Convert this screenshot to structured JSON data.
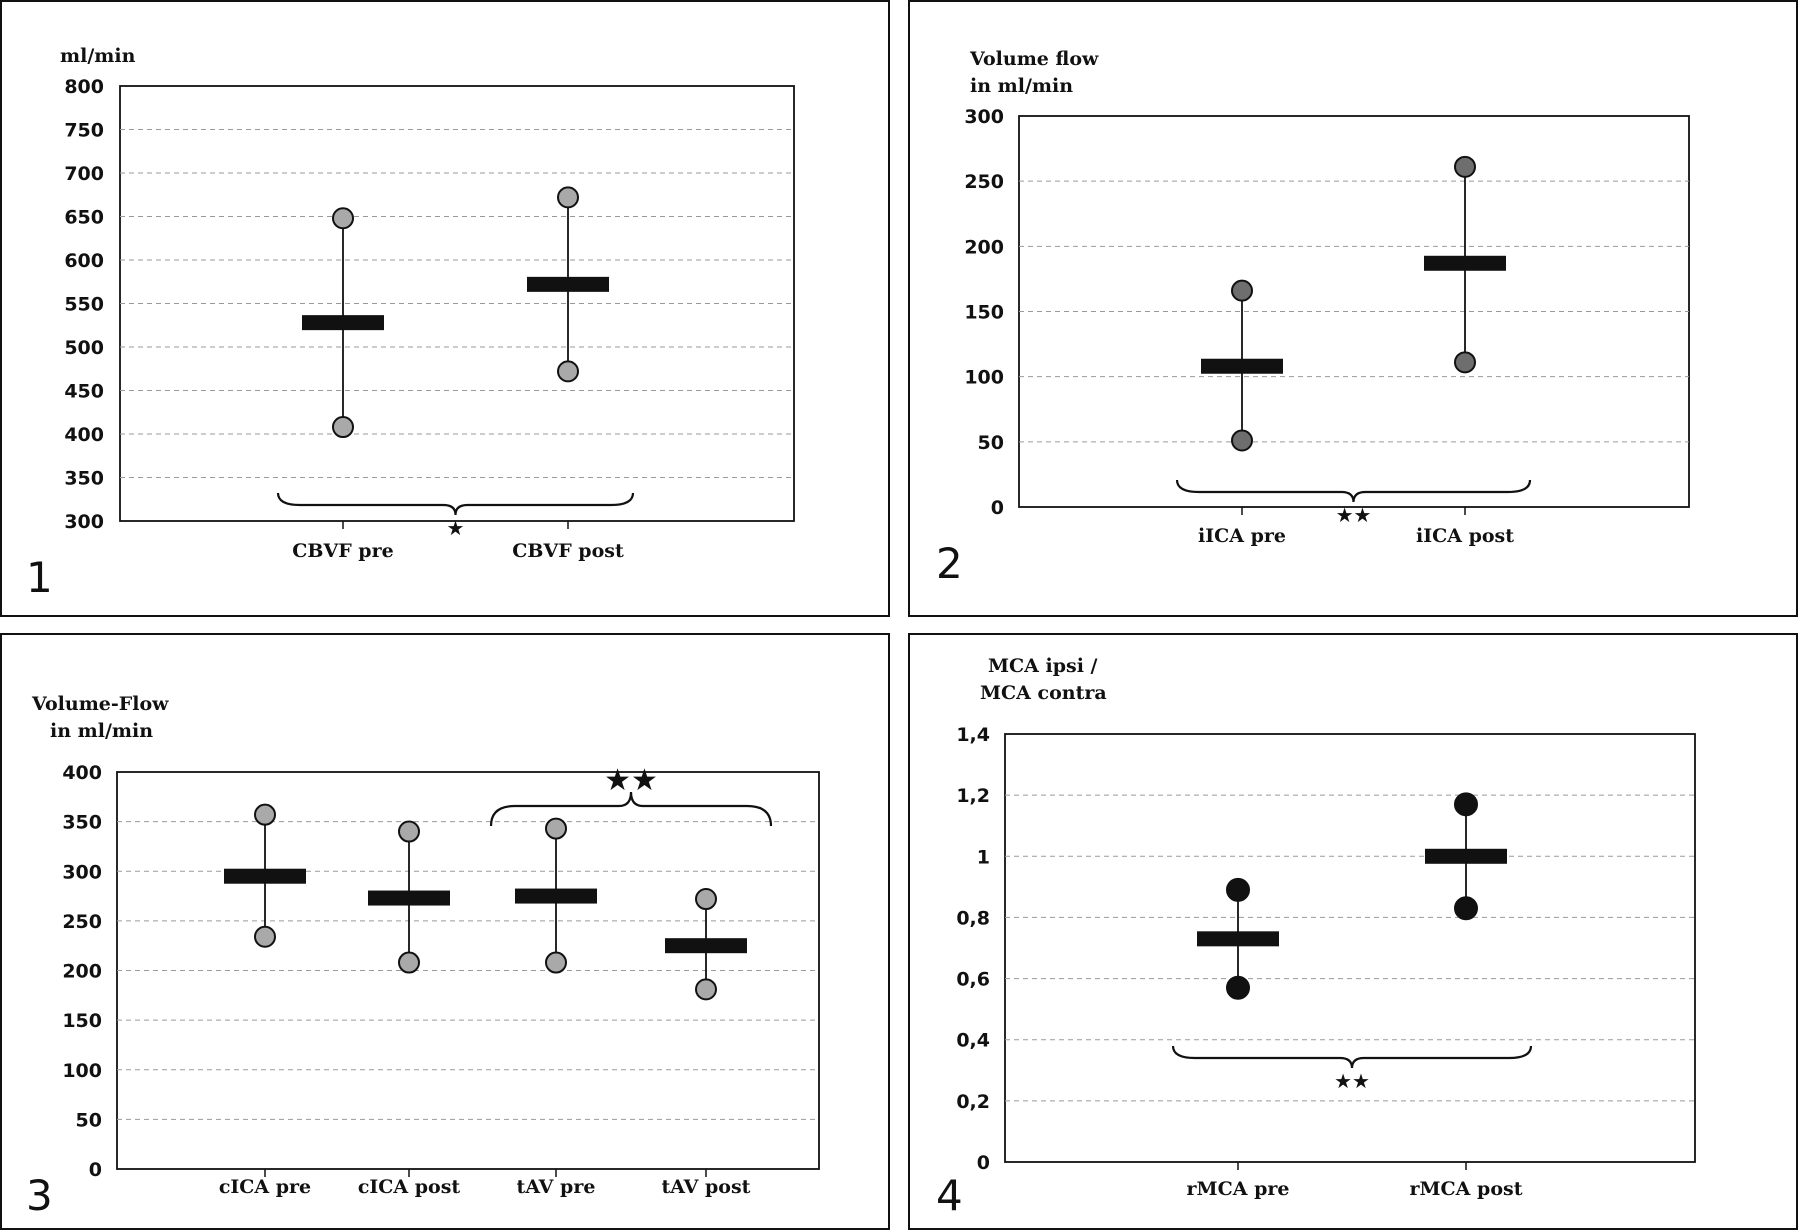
{
  "chart_data": [
    {
      "type": "range",
      "panel_label": "1",
      "ylabel_lines": [
        "ml/min"
      ],
      "ylim": [
        300,
        800
      ],
      "yticks": [
        "300",
        "350",
        "400",
        "450",
        "500",
        "550",
        "600",
        "650",
        "700",
        "750",
        "800"
      ],
      "categories": [
        "CBVF pre",
        "CBVF post"
      ],
      "mean": [
        528,
        572
      ],
      "low": [
        408,
        472
      ],
      "high": [
        648,
        672
      ],
      "marker_color": "#a9a9a9",
      "significance": {
        "label": "★",
        "from": 0,
        "to": 1,
        "position": "below"
      },
      "grid": true
    },
    {
      "type": "range",
      "panel_label": "2",
      "ylabel_lines": [
        "Volume flow",
        "in ml/min"
      ],
      "ylim": [
        0,
        300
      ],
      "yticks": [
        "0",
        "50",
        "100",
        "150",
        "200",
        "250",
        "300"
      ],
      "categories": [
        "iICA pre",
        "iICA post"
      ],
      "mean": [
        108,
        187
      ],
      "low": [
        51,
        111
      ],
      "high": [
        166,
        261
      ],
      "marker_color": "#6e6e6e",
      "significance": {
        "label": "★★",
        "from": 0,
        "to": 1,
        "position": "below"
      },
      "grid": true
    },
    {
      "type": "range",
      "panel_label": "3",
      "ylabel_lines": [
        "Volume-Flow",
        "in ml/min"
      ],
      "ylim": [
        0,
        400
      ],
      "yticks": [
        "0",
        "50",
        "100",
        "150",
        "200",
        "250",
        "300",
        "350",
        "400"
      ],
      "categories": [
        "cICA pre",
        "cICA post",
        "tAV pre",
        "tAV post"
      ],
      "mean": [
        295,
        273,
        275,
        225
      ],
      "low": [
        234,
        208,
        208,
        181
      ],
      "high": [
        357,
        340,
        343,
        272
      ],
      "marker_color": "#a9a9a9",
      "significance": {
        "label": "★★",
        "from": 2,
        "to": 3,
        "position": "above"
      },
      "grid": true
    },
    {
      "type": "range",
      "panel_label": "4",
      "ylabel_lines": [
        "MCA ipsi /",
        "MCA contra"
      ],
      "ylim": [
        0,
        1.4
      ],
      "yticks": [
        "0",
        "0,2",
        "0,4",
        "0,6",
        "0,8",
        "1",
        "1,2",
        "1,4"
      ],
      "categories": [
        "rMCA pre",
        "rMCA post"
      ],
      "mean": [
        0.73,
        1.0
      ],
      "low": [
        0.57,
        0.83
      ],
      "high": [
        0.89,
        1.17
      ],
      "marker_color": "#111111",
      "significance": {
        "label": "★★",
        "from": 0,
        "to": 1,
        "position": "below"
      },
      "grid": true
    }
  ]
}
